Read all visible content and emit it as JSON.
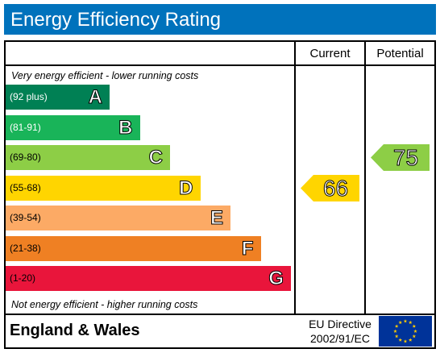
{
  "title": "Energy Efficiency Rating",
  "headers": {
    "current": "Current",
    "potential": "Potential"
  },
  "notes": {
    "top": "Very energy efficient - lower running costs",
    "bottom": "Not energy efficient - higher running costs"
  },
  "footer": {
    "region": "England & Wales",
    "directive_line1": "EU Directive",
    "directive_line2": "2002/91/EC",
    "flag_icon": "eu-flag-icon"
  },
  "chart_data": {
    "type": "table",
    "bands": [
      {
        "letter": "A",
        "range": "(92 plus)",
        "min": 92,
        "max": null,
        "color": "#008054",
        "text_color": "#ffffff"
      },
      {
        "letter": "B",
        "range": "(81-91)",
        "min": 81,
        "max": 91,
        "color": "#19b459",
        "text_color": "#ffffff"
      },
      {
        "letter": "C",
        "range": "(69-80)",
        "min": 69,
        "max": 80,
        "color": "#8dce46",
        "text_color": "#000000"
      },
      {
        "letter": "D",
        "range": "(55-68)",
        "min": 55,
        "max": 68,
        "color": "#ffd500",
        "text_color": "#000000"
      },
      {
        "letter": "E",
        "range": "(39-54)",
        "min": 39,
        "max": 54,
        "color": "#fcaa65",
        "text_color": "#000000"
      },
      {
        "letter": "F",
        "range": "(21-38)",
        "min": 21,
        "max": 38,
        "color": "#ef8023",
        "text_color": "#000000"
      },
      {
        "letter": "G",
        "range": "(1-20)",
        "min": 1,
        "max": 20,
        "color": "#e9153b",
        "text_color": "#000000"
      }
    ],
    "current": {
      "value": 66,
      "band": "D",
      "color": "#ffd500"
    },
    "potential": {
      "value": 75,
      "band": "C",
      "color": "#8dce46"
    }
  }
}
